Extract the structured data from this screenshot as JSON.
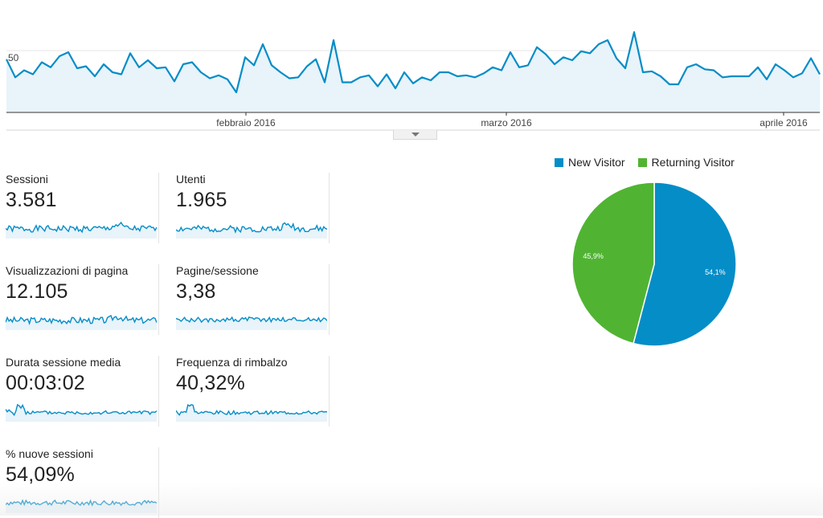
{
  "chart_data": [
    {
      "type": "area",
      "yticks": [
        "50"
      ],
      "ylim": [
        0,
        100
      ],
      "xtick_labels": [
        "febbraio 2016",
        "marzo 2016",
        "aprile 2016"
      ],
      "series": [
        {
          "color": "#058dc7",
          "values": [
            53,
            35,
            42,
            38,
            50,
            45,
            56,
            60,
            44,
            46,
            36,
            48,
            40,
            38,
            59,
            45,
            52,
            44,
            45,
            31,
            48,
            50,
            40,
            34,
            37,
            33,
            20,
            55,
            47,
            68,
            47,
            40,
            34,
            35,
            46,
            53,
            30,
            72,
            30,
            30,
            35,
            37,
            26,
            38,
            24,
            40,
            29,
            35,
            32,
            40,
            40,
            36,
            37,
            35,
            39,
            45,
            42,
            60,
            45,
            47,
            65,
            58,
            48,
            55,
            52,
            61,
            59,
            68,
            72,
            54,
            44,
            80,
            40,
            41,
            36,
            28,
            28,
            45,
            48,
            43,
            42,
            35,
            36,
            36,
            36,
            45,
            33,
            48,
            42,
            35,
            39,
            54,
            38
          ]
        }
      ]
    },
    {
      "type": "pie",
      "legend_position": "top",
      "slices": [
        {
          "name": "New Visitor",
          "value": 54.1,
          "label": "54,1%",
          "color": "#058dc7"
        },
        {
          "name": "Returning Visitor",
          "value": 45.9,
          "label": "45,9%",
          "color": "#50b432"
        }
      ]
    }
  ],
  "metrics": [
    {
      "label": "Sessioni",
      "value": "3.581"
    },
    {
      "label": "Utenti",
      "value": "1.965"
    },
    {
      "label": "Visualizzazioni di pagina",
      "value": "12.105"
    },
    {
      "label": "Pagine/sessione",
      "value": "3,38"
    },
    {
      "label": "Durata sessione media",
      "value": "00:03:02"
    },
    {
      "label": "Frequenza di rimbalzo",
      "value": "40,32%"
    },
    {
      "label": "% nuove sessioni",
      "value": "54,09%"
    }
  ],
  "colors": {
    "line": "#058dc7",
    "fill": "#e8f3fa",
    "new_visitor": "#058dc7",
    "returning_visitor": "#50b432"
  }
}
